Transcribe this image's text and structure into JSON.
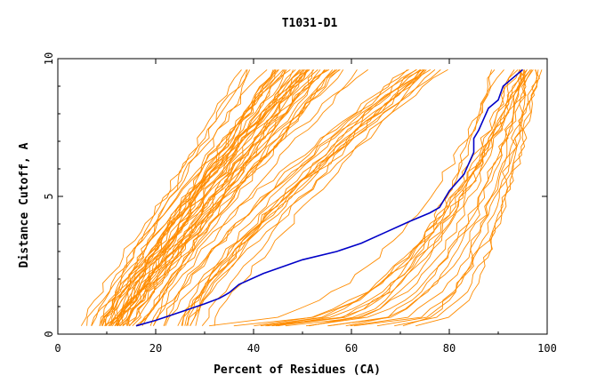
{
  "chart_data": {
    "type": "line",
    "title": "T1031-D1",
    "xlabel": "Percent of Residues (CA)",
    "ylabel": "Distance Cutoff, A",
    "xlim": [
      0,
      100
    ],
    "ylim": [
      0,
      10
    ],
    "xticks": [
      "0",
      "20",
      "40",
      "60",
      "80",
      "100"
    ],
    "yticks": [
      "0",
      "5",
      "10"
    ],
    "grid": false,
    "legend": "none",
    "colors": {
      "highlight": "#0000c8",
      "others": "#ff8c00"
    },
    "highlight_series": {
      "x": [
        16,
        20,
        25,
        30,
        33,
        35,
        37,
        42,
        50,
        57,
        62,
        67,
        72,
        76,
        78,
        80,
        83,
        84,
        85,
        85,
        86,
        87,
        88,
        90,
        91,
        93,
        95
      ],
      "y": [
        0.3,
        0.5,
        0.8,
        1.1,
        1.3,
        1.5,
        1.8,
        2.2,
        2.7,
        3.0,
        3.3,
        3.7,
        4.1,
        4.4,
        4.6,
        5.2,
        5.8,
        6.2,
        6.6,
        7.1,
        7.4,
        7.8,
        8.2,
        8.5,
        9.0,
        9.3,
        9.6
      ]
    },
    "series_groups": [
      {
        "count": 45,
        "x_at_0_3": [
          4,
          20
        ],
        "x_at_9_6": [
          34,
          64
        ],
        "curvature": 0.9
      },
      {
        "count": 16,
        "x_at_0_3": [
          18,
          33
        ],
        "x_at_9_6": [
          70,
          80
        ],
        "curvature": 0.8
      },
      {
        "count": 22,
        "x_at_0_3": [
          22,
          80
        ],
        "x_at_9_6": [
          89,
          100
        ],
        "curvature": 2.6
      }
    ]
  }
}
